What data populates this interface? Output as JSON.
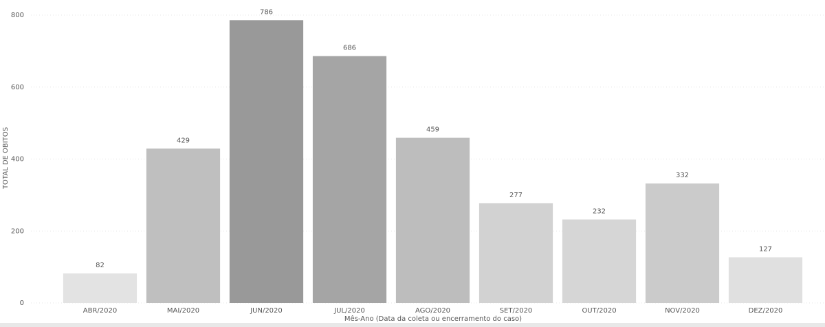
{
  "chart_data": {
    "type": "bar",
    "categories": [
      "ABR/2020",
      "MAI/2020",
      "JUN/2020",
      "JUL/2020",
      "AGO/2020",
      "SET/2020",
      "OUT/2020",
      "NOV/2020",
      "DEZ/2020"
    ],
    "values": [
      82,
      429,
      786,
      686,
      459,
      277,
      232,
      332,
      127
    ],
    "colors": [
      "#e3e3e3",
      "#bfbfbf",
      "#999999",
      "#a5a5a5",
      "#bdbdbd",
      "#d2d2d2",
      "#d6d6d6",
      "#cbcbcb",
      "#e0e0e0"
    ],
    "xlabel": "Mês-Ano (Data da coleta ou encerramento do caso)",
    "ylabel": "TOTAL DE OBITOS",
    "ylim": [
      0,
      800
    ],
    "yticks": [
      0,
      200,
      400,
      600,
      800
    ],
    "grid": true
  }
}
